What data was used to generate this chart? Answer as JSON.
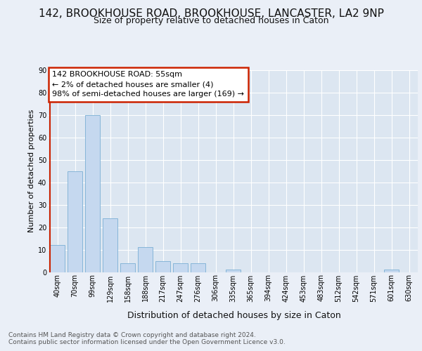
{
  "title": "142, BROOKHOUSE ROAD, BROOKHOUSE, LANCASTER, LA2 9NP",
  "subtitle": "Size of property relative to detached houses in Caton",
  "xlabel": "Distribution of detached houses by size in Caton",
  "ylabel": "Number of detached properties",
  "bar_labels": [
    "40sqm",
    "70sqm",
    "99sqm",
    "129sqm",
    "158sqm",
    "188sqm",
    "217sqm",
    "247sqm",
    "276sqm",
    "306sqm",
    "335sqm",
    "365sqm",
    "394sqm",
    "424sqm",
    "453sqm",
    "483sqm",
    "512sqm",
    "542sqm",
    "571sqm",
    "601sqm",
    "630sqm"
  ],
  "bar_values": [
    12,
    45,
    70,
    24,
    4,
    11,
    5,
    4,
    4,
    0,
    1,
    0,
    0,
    0,
    0,
    0,
    0,
    0,
    0,
    1,
    0
  ],
  "bar_color": "#c5d8ef",
  "bar_edge_color": "#7aafd4",
  "highlight_color": "#cc2200",
  "background_color": "#eaeff7",
  "plot_bg_color": "#dce6f1",
  "grid_color": "#ffffff",
  "annotation_text": "142 BROOKHOUSE ROAD: 55sqm\n← 2% of detached houses are smaller (4)\n98% of semi-detached houses are larger (169) →",
  "annotation_box_color": "#ffffff",
  "annotation_box_edge_color": "#cc2200",
  "footer_text": "Contains HM Land Registry data © Crown copyright and database right 2024.\nContains public sector information licensed under the Open Government Licence v3.0.",
  "ylim": [
    0,
    90
  ],
  "yticks": [
    0,
    10,
    20,
    30,
    40,
    50,
    60,
    70,
    80,
    90
  ],
  "title_fontsize": 11,
  "subtitle_fontsize": 9,
  "ylabel_fontsize": 8,
  "xlabel_fontsize": 9,
  "tick_fontsize": 7,
  "annotation_fontsize": 8,
  "footer_fontsize": 6.5
}
